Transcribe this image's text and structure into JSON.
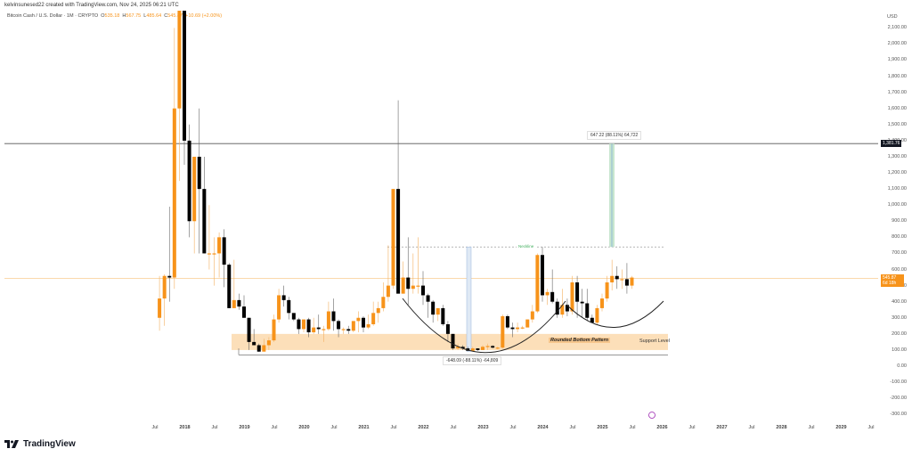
{
  "header": {
    "attribution": "kelvinsunesed22 created with TradingView.com, Nov 24, 2025 06:21 UTC"
  },
  "legend": {
    "symbol": "Bitcoin Cash / U.S. Dollar · 1M · CRYPTO",
    "open_label": "O",
    "open": "535.18",
    "high_label": "H",
    "high": "567.75",
    "low_label": "L",
    "low": "485.64",
    "close_label": "C",
    "close": "545.87",
    "change": "+10.69 (+2.00%)"
  },
  "axis": {
    "currency": "USD",
    "current_price_tag": "545.87",
    "current_countdown_tag": "6d 18h",
    "target_price_tag": "1,381.76"
  },
  "annotations": {
    "upper_measure": "647.22 (88.11%) 64,722",
    "lower_measure": "-648.09 (-88.11%) -64,809",
    "neckline": "Neckline",
    "pattern": "Rounded Bottom Pattern",
    "support": "Support Level"
  },
  "brand": {
    "name": "TradingView"
  },
  "colors": {
    "up": "#f7931a",
    "down": "#000000",
    "support_band": "#fbd9ad",
    "measure": "#c8e6cf",
    "neckline": "#4caf50",
    "target_line": "#555555",
    "current_line": "#f7c27a"
  },
  "chart_data": {
    "type": "candlestick",
    "title": "Bitcoin Cash / U.S. Dollar · 1M · CRYPTO",
    "xlabel": "",
    "ylabel": "USD",
    "ylim": [
      -300,
      2100
    ],
    "y_ticks": [
      "2,100.00",
      "2,000.00",
      "1,900.00",
      "1,800.00",
      "1,700.00",
      "1,600.00",
      "1,500.00",
      "1,400.00",
      "1,300.00",
      "1,200.00",
      "1,100.00",
      "1,000.00",
      "900.00",
      "800.00",
      "700.00",
      "600.00",
      "500.00",
      "400.00",
      "300.00",
      "200.00",
      "100.00",
      "0.00",
      "-100.00",
      "-200.00",
      "-300.00"
    ],
    "x_ticks": [
      "Jul",
      "2018",
      "Jul",
      "2019",
      "Jul",
      "2020",
      "Jul",
      "2021",
      "Jul",
      "2022",
      "Jul",
      "2023",
      "Jul",
      "2024",
      "Jul",
      "2025",
      "Jul",
      "2026",
      "Jul",
      "2027",
      "Jul",
      "2028",
      "Jul",
      "2029",
      "Jul"
    ],
    "horizontal_levels": [
      {
        "name": "Target",
        "value": 1381.76
      },
      {
        "name": "Neckline",
        "value": 740
      },
      {
        "name": "Current",
        "value": 545.87
      },
      {
        "name": "Support zone",
        "from": 100,
        "to": 200
      }
    ],
    "candles_start": "2017-08",
    "ohlc": [
      [
        300,
        560,
        220,
        420
      ],
      [
        420,
        570,
        250,
        560
      ],
      [
        560,
        990,
        400,
        550
      ],
      [
        550,
        2100,
        480,
        1600
      ],
      [
        1600,
        4000,
        1150,
        2400
      ],
      [
        2400,
        2800,
        1250,
        1400
      ],
      [
        1400,
        1500,
        800,
        900
      ],
      [
        900,
        1200,
        700,
        1300
      ],
      [
        1300,
        1600,
        700,
        1100
      ],
      [
        1100,
        1300,
        700,
        700
      ],
      [
        700,
        1000,
        600,
        700
      ],
      [
        700,
        800,
        500,
        700
      ],
      [
        700,
        830,
        550,
        800
      ],
      [
        800,
        850,
        490,
        630
      ],
      [
        630,
        640,
        360,
        360
      ],
      [
        360,
        660,
        380,
        410
      ],
      [
        410,
        450,
        350,
        370
      ],
      [
        370,
        440,
        350,
        300
      ],
      [
        300,
        300,
        100,
        150
      ],
      [
        150,
        230,
        140,
        130
      ],
      [
        130,
        140,
        90,
        90
      ],
      [
        90,
        170,
        130,
        130
      ],
      [
        130,
        180,
        100,
        160
      ],
      [
        160,
        320,
        150,
        290
      ],
      [
        290,
        480,
        270,
        440
      ],
      [
        440,
        500,
        370,
        410
      ],
      [
        410,
        430,
        290,
        330
      ],
      [
        330,
        320,
        280,
        290
      ],
      [
        290,
        300,
        200,
        230
      ],
      [
        230,
        290,
        210,
        290
      ],
      [
        290,
        300,
        180,
        210
      ],
      [
        210,
        300,
        200,
        240
      ],
      [
        240,
        320,
        200,
        230
      ],
      [
        230,
        250,
        150,
        230
      ],
      [
        230,
        400,
        220,
        340
      ],
      [
        340,
        420,
        220,
        280
      ],
      [
        280,
        290,
        180,
        230
      ],
      [
        230,
        240,
        200,
        230
      ],
      [
        230,
        250,
        200,
        220
      ],
      [
        220,
        280,
        210,
        280
      ],
      [
        280,
        340,
        210,
        300
      ],
      [
        300,
        310,
        210,
        240
      ],
      [
        240,
        320,
        230,
        260
      ],
      [
        260,
        400,
        250,
        330
      ],
      [
        330,
        400,
        270,
        360
      ],
      [
        360,
        520,
        340,
        430
      ],
      [
        430,
        750,
        400,
        500
      ],
      [
        500,
        900,
        480,
        1100
      ],
      [
        1100,
        1650,
        470,
        450
      ],
      [
        450,
        650,
        450,
        550
      ],
      [
        550,
        800,
        380,
        480
      ],
      [
        480,
        700,
        450,
        500
      ],
      [
        500,
        800,
        450,
        500
      ],
      [
        500,
        590,
        380,
        440
      ],
      [
        440,
        450,
        300,
        400
      ],
      [
        400,
        410,
        270,
        320
      ],
      [
        320,
        350,
        280,
        360
      ],
      [
        360,
        380,
        250,
        260
      ],
      [
        260,
        280,
        150,
        200
      ],
      [
        200,
        200,
        100,
        110
      ],
      [
        110,
        140,
        100,
        120
      ],
      [
        120,
        130,
        100,
        110
      ],
      [
        110,
        120,
        95,
        95
      ],
      [
        95,
        120,
        100,
        110
      ],
      [
        110,
        110,
        95,
        100
      ],
      [
        100,
        130,
        100,
        120
      ],
      [
        120,
        140,
        100,
        125
      ],
      [
        125,
        130,
        110,
        115
      ],
      [
        115,
        120,
        105,
        115
      ],
      [
        115,
        320,
        110,
        310
      ],
      [
        310,
        320,
        230,
        240
      ],
      [
        240,
        270,
        180,
        230
      ],
      [
        230,
        270,
        210,
        240
      ],
      [
        240,
        250,
        230,
        240
      ],
      [
        240,
        290,
        250,
        290
      ],
      [
        290,
        380,
        270,
        340
      ],
      [
        340,
        700,
        330,
        690
      ],
      [
        690,
        740,
        400,
        440
      ],
      [
        440,
        480,
        380,
        460
      ],
      [
        460,
        600,
        390,
        400
      ],
      [
        400,
        420,
        300,
        320
      ],
      [
        320,
        480,
        300,
        380
      ],
      [
        380,
        420,
        310,
        340
      ],
      [
        340,
        560,
        320,
        520
      ],
      [
        520,
        560,
        300,
        400
      ],
      [
        400,
        480,
        300,
        390
      ],
      [
        390,
        480,
        280,
        300
      ],
      [
        300,
        320,
        280,
        270
      ],
      [
        270,
        380,
        260,
        360
      ],
      [
        360,
        450,
        340,
        420
      ],
      [
        420,
        560,
        400,
        520
      ],
      [
        520,
        660,
        470,
        560
      ],
      [
        560,
        620,
        480,
        540
      ],
      [
        540,
        600,
        480,
        540
      ],
      [
        540,
        640,
        450,
        500
      ],
      [
        500,
        560,
        480,
        550
      ]
    ]
  }
}
